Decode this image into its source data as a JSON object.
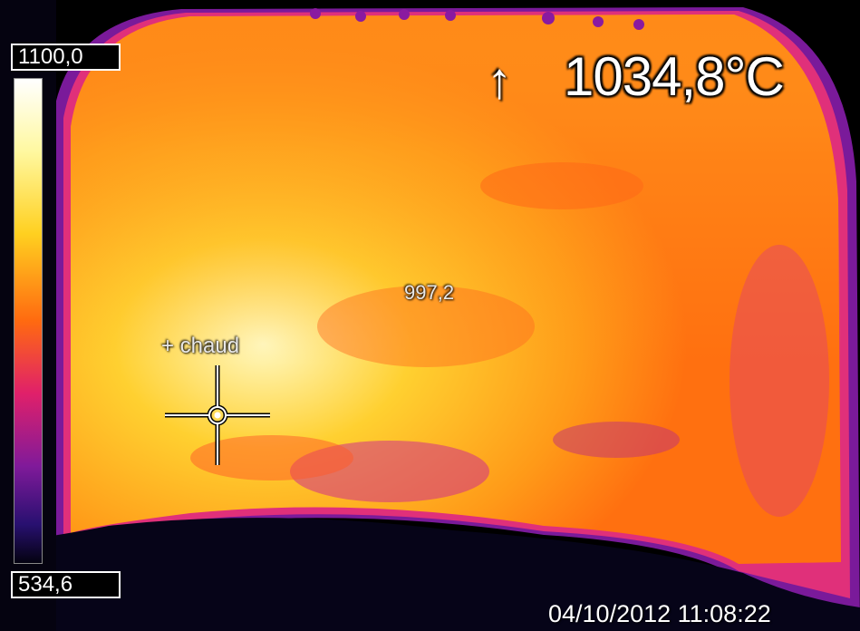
{
  "scale": {
    "max_label": "1100,0",
    "min_label": "534,6"
  },
  "overlay": {
    "max_temperature": "1034,8°C",
    "arrow_icon": "up-arrow-icon",
    "spot_value": "997,2",
    "hot_spot_label": "+ chaud",
    "timestamp": "04/10/2012 11:08:22"
  },
  "palette": {
    "background": "#000000",
    "hot": "#ffffd8",
    "warm": "#ffc020",
    "mid": "#ff7a10",
    "cool": "#c0209a",
    "cold": "#2a1070"
  }
}
